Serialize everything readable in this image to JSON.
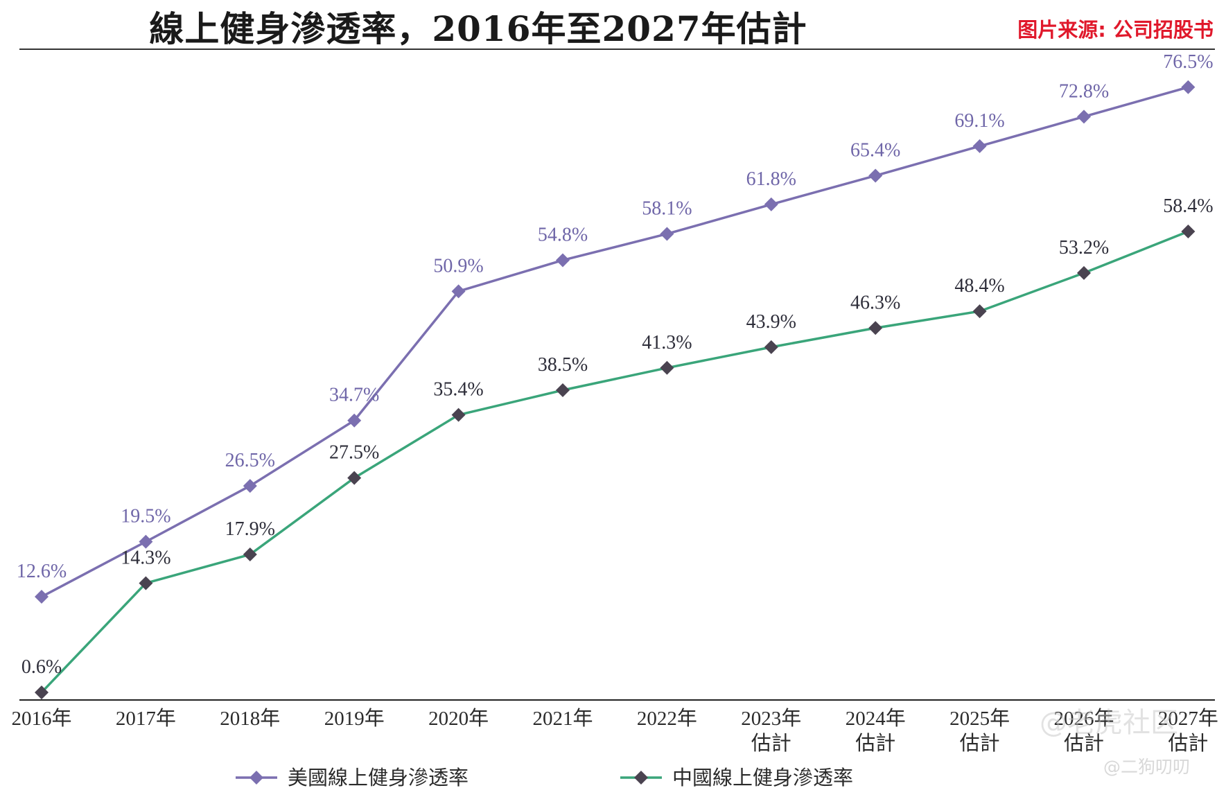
{
  "header": {
    "title": "線上健身滲透率，2016年至2027年估計",
    "source": "图片来源: 公司招股书"
  },
  "watermark": {
    "text": "@老虎社区",
    "handle": "@二狗叨叨"
  },
  "chart_data": {
    "type": "line",
    "title": "線上健身滲透率，2016年至2027年估計",
    "categories": [
      "2016年",
      "2017年",
      "2018年",
      "2019年",
      "2020年",
      "2021年",
      "2022年",
      "2023年估計",
      "2024年估計",
      "2025年估計",
      "2026年估計",
      "2027年估計"
    ],
    "category_lines": [
      [
        "2016年"
      ],
      [
        "2017年"
      ],
      [
        "2018年"
      ],
      [
        "2019年"
      ],
      [
        "2020年"
      ],
      [
        "2021年"
      ],
      [
        "2022年"
      ],
      [
        "2023年",
        "估計"
      ],
      [
        "2024年",
        "估計"
      ],
      [
        "2025年",
        "估計"
      ],
      [
        "2026年",
        "估計"
      ],
      [
        "2027年",
        "估計"
      ]
    ],
    "series": [
      {
        "name": "美國線上健身滲透率",
        "color": "#7b6fb0",
        "label_color": "#6f66a8",
        "marker_color": "#7b6fb0",
        "values": [
          12.6,
          19.5,
          26.5,
          34.7,
          50.9,
          54.8,
          58.1,
          61.8,
          65.4,
          69.1,
          72.8,
          76.5
        ],
        "labels": [
          "12.6%",
          "19.5%",
          "26.5%",
          "34.7%",
          "50.9%",
          "54.8%",
          "58.1%",
          "61.8%",
          "65.4%",
          "69.1%",
          "72.8%",
          "76.5%"
        ]
      },
      {
        "name": "中國線上健身滲透率",
        "color": "#3aa57a",
        "label_color": "#2e2e3a",
        "marker_color": "#4a4350",
        "values": [
          0.6,
          14.3,
          17.9,
          27.5,
          35.4,
          38.5,
          41.3,
          43.9,
          46.3,
          48.4,
          53.2,
          58.4
        ],
        "labels": [
          "0.6%",
          "14.3%",
          "17.9%",
          "27.5%",
          "35.4%",
          "38.5%",
          "41.3%",
          "43.9%",
          "46.3%",
          "48.4%",
          "53.2%",
          "58.4%"
        ]
      }
    ],
    "ylim": [
      0,
      80
    ],
    "grid": false,
    "legend_position": "bottom",
    "marker": "diamond"
  }
}
